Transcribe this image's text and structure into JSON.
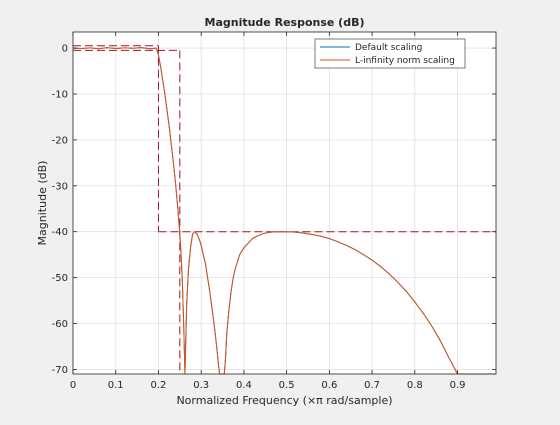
{
  "chart_data": {
    "type": "line",
    "title": "Magnitude Response (dB)",
    "xlabel": "Normalized Frequency (×π rad/sample)",
    "ylabel": "Magnitude (dB)",
    "xlim": [
      0,
      0.99
    ],
    "ylim": [
      -71,
      3.5
    ],
    "xticks": [
      0,
      0.1,
      0.2,
      0.3,
      0.4,
      0.5,
      0.6,
      0.7,
      0.8,
      0.9
    ],
    "xtick_labels": [
      "0",
      "0.1",
      "0.2",
      "0.3",
      "0.4",
      "0.5",
      "0.6",
      "0.7",
      "0.8",
      "0.9"
    ],
    "yticks": [
      0,
      -10,
      -20,
      -30,
      -40,
      -50,
      -60,
      -70
    ],
    "ytick_labels": [
      "0",
      "-10",
      "-20",
      "-30",
      "-40",
      "-50",
      "-60",
      "-70"
    ],
    "grid": true,
    "legend_position": "top-right",
    "series": [
      {
        "name": "Default scaling",
        "color": "#0072bd",
        "x": [
          0,
          0.02,
          0.04,
          0.06,
          0.08,
          0.1,
          0.12,
          0.14,
          0.16,
          0.18,
          0.195,
          0.2,
          0.205,
          0.21,
          0.215,
          0.22,
          0.225,
          0.23,
          0.235,
          0.24,
          0.245,
          0.25,
          0.253,
          0.256,
          0.259,
          0.262,
          0.266,
          0.27,
          0.275,
          0.28,
          0.285,
          0.29,
          0.295,
          0.3,
          0.305,
          0.31,
          0.315,
          0.32,
          0.325,
          0.33,
          0.335,
          0.34,
          0.343,
          0.346,
          0.348,
          0.35,
          0.352,
          0.354,
          0.357,
          0.36,
          0.365,
          0.37,
          0.375,
          0.38,
          0.39,
          0.4,
          0.41,
          0.42,
          0.43,
          0.44,
          0.45,
          0.46,
          0.47,
          0.48,
          0.5,
          0.52,
          0.54,
          0.56,
          0.58,
          0.6,
          0.62,
          0.64,
          0.66,
          0.68,
          0.7,
          0.72,
          0.74,
          0.76,
          0.78,
          0.8,
          0.82,
          0.84,
          0.86,
          0.88,
          0.9,
          0.92,
          0.94,
          0.955,
          0.965,
          0.975,
          0.98,
          0.985,
          0.99
        ],
        "values": [
          0,
          -0.1,
          0.05,
          -0.15,
          0.1,
          -0.1,
          0.05,
          -0.05,
          0.1,
          -0.15,
          0,
          -1.5,
          -4,
          -7,
          -10,
          -13.5,
          -17,
          -21,
          -25,
          -29.5,
          -34.5,
          -40.5,
          -45,
          -51,
          -60,
          -71,
          -56,
          -48.5,
          -43.5,
          -40.5,
          -40,
          -40.5,
          -41.5,
          -43,
          -45,
          -47,
          -50,
          -53,
          -56.5,
          -60,
          -64,
          -68.5,
          -71,
          -71,
          -71,
          -71,
          -71,
          -71,
          -67.5,
          -62,
          -57,
          -53,
          -50,
          -48,
          -45,
          -43.5,
          -42.5,
          -41.5,
          -41,
          -40.6,
          -40.3,
          -40.15,
          -40.05,
          -40,
          -40,
          -40.1,
          -40.3,
          -40.6,
          -41,
          -41.5,
          -42.2,
          -43,
          -43.9,
          -45,
          -46.2,
          -47.6,
          -49.2,
          -51,
          -53,
          -55.3,
          -57.8,
          -60.6,
          -63.8,
          -67.5,
          -71,
          -71,
          -71,
          -71,
          -71,
          -71,
          -71,
          -71,
          -71
        ]
      },
      {
        "name": "L-infinity norm scaling",
        "color": "#d95319",
        "x": [
          0,
          0.02,
          0.04,
          0.06,
          0.08,
          0.1,
          0.12,
          0.14,
          0.16,
          0.18,
          0.195,
          0.2,
          0.205,
          0.21,
          0.215,
          0.22,
          0.225,
          0.23,
          0.235,
          0.24,
          0.245,
          0.25,
          0.253,
          0.256,
          0.259,
          0.262,
          0.266,
          0.27,
          0.275,
          0.28,
          0.285,
          0.29,
          0.295,
          0.3,
          0.305,
          0.31,
          0.315,
          0.32,
          0.325,
          0.33,
          0.335,
          0.34,
          0.343,
          0.346,
          0.348,
          0.35,
          0.352,
          0.354,
          0.357,
          0.36,
          0.365,
          0.37,
          0.375,
          0.38,
          0.39,
          0.4,
          0.41,
          0.42,
          0.43,
          0.44,
          0.45,
          0.46,
          0.47,
          0.48,
          0.5,
          0.52,
          0.54,
          0.56,
          0.58,
          0.6,
          0.62,
          0.64,
          0.66,
          0.68,
          0.7,
          0.72,
          0.74,
          0.76,
          0.78,
          0.8,
          0.82,
          0.84,
          0.86,
          0.88,
          0.9,
          0.92,
          0.94,
          0.955,
          0.965,
          0.975,
          0.98,
          0.985,
          0.99
        ],
        "values": [
          0,
          -0.1,
          0.05,
          -0.15,
          0.1,
          -0.1,
          0.05,
          -0.05,
          0.1,
          -0.15,
          0,
          -1.5,
          -4,
          -7,
          -10,
          -13.5,
          -17,
          -21,
          -25,
          -29.5,
          -34.5,
          -40.5,
          -45,
          -51,
          -60,
          -71,
          -56,
          -48.5,
          -43.5,
          -40.5,
          -40,
          -40.5,
          -41.5,
          -43,
          -45,
          -47,
          -50,
          -53,
          -56.5,
          -60,
          -64,
          -68.5,
          -71,
          -71,
          -71,
          -71,
          -71,
          -71,
          -67.5,
          -62,
          -57,
          -53,
          -50,
          -48,
          -45,
          -43.5,
          -42.5,
          -41.5,
          -41,
          -40.6,
          -40.3,
          -40.15,
          -40.05,
          -40,
          -40,
          -40.1,
          -40.3,
          -40.6,
          -41,
          -41.5,
          -42.2,
          -43,
          -43.9,
          -45,
          -46.2,
          -47.6,
          -49.2,
          -51,
          -53,
          -55.3,
          -57.8,
          -60.6,
          -63.8,
          -67.5,
          -71,
          -71,
          -71,
          -71,
          -71,
          -71,
          -71,
          -71,
          -71
        ]
      }
    ],
    "mask_lines": [
      {
        "color": "#a2142f",
        "x": [
          0,
          0.2
        ],
        "values": [
          0.5,
          0.5
        ]
      },
      {
        "color": "#a2142f",
        "x": [
          0,
          0.25
        ],
        "values": [
          -0.5,
          -0.5
        ]
      },
      {
        "color": "#a2142f",
        "x": [
          0.2,
          0.2
        ],
        "values": [
          0.5,
          -40
        ]
      },
      {
        "color": "#a2142f",
        "x": [
          0.2,
          0.99
        ],
        "values": [
          -40,
          -40
        ]
      },
      {
        "color": "#a2142f",
        "x": [
          0.25,
          0.25
        ],
        "values": [
          -0.5,
          -71
        ]
      }
    ]
  }
}
